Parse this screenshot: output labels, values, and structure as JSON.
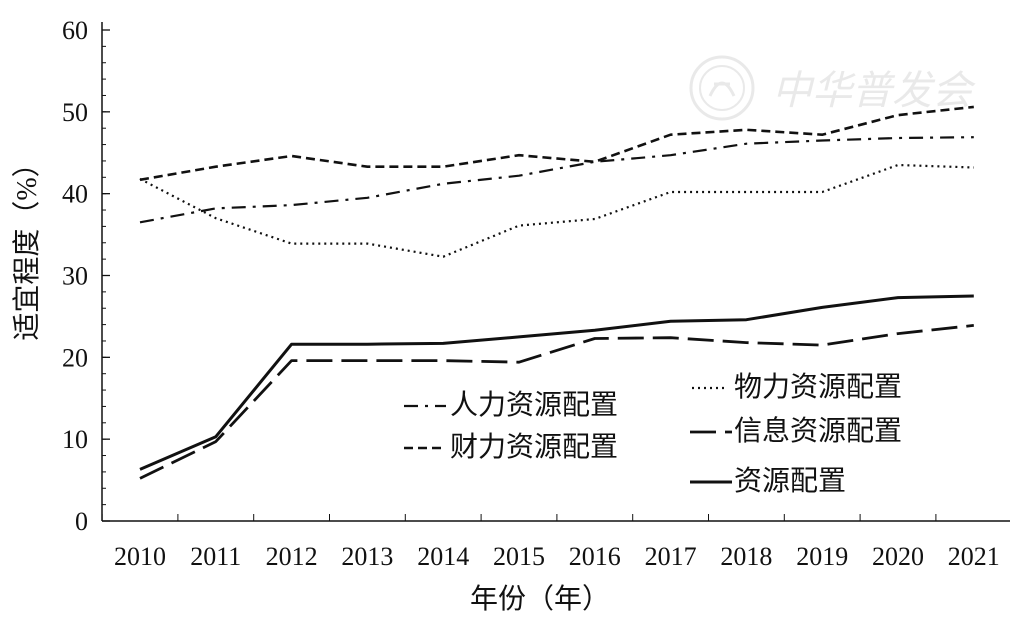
{
  "chart_data": {
    "type": "line",
    "xlabel": "年份（年）",
    "ylabel": "适宜程度（%）",
    "ylim": [
      0,
      60
    ],
    "y_ticks": [
      0,
      10,
      20,
      30,
      40,
      50,
      60
    ],
    "grid": false,
    "legend_placement": "bottom-center",
    "watermark_text": "中华普发会",
    "categories": [
      "2010",
      "2011",
      "2012",
      "2013",
      "2014",
      "2015",
      "2016",
      "2017",
      "2018",
      "2019",
      "2020",
      "2021"
    ],
    "series": [
      {
        "name": "人力资源配置",
        "style": "dash-dot",
        "values": [
          36.5,
          38.2,
          38.6,
          39.5,
          41.2,
          42.2,
          43.9,
          44.7,
          46.1,
          46.5,
          46.8,
          46.9
        ]
      },
      {
        "name": "物力资源配置",
        "style": "dotted",
        "values": [
          41.8,
          37.0,
          33.9,
          33.9,
          32.3,
          36.1,
          36.9,
          40.2,
          40.2,
          40.2,
          43.5,
          43.2
        ]
      },
      {
        "name": "财力资源配置",
        "style": "short-dash",
        "values": [
          41.7,
          43.3,
          44.6,
          43.3,
          43.3,
          44.7,
          43.9,
          47.2,
          47.8,
          47.2,
          49.6,
          50.6
        ]
      },
      {
        "name": "信息资源配置",
        "style": "long-dash",
        "values": [
          5.2,
          9.7,
          19.6,
          19.6,
          19.6,
          19.4,
          22.3,
          22.4,
          21.8,
          21.5,
          22.9,
          23.9
        ]
      },
      {
        "name": "资源配置",
        "style": "solid",
        "values": [
          6.3,
          10.3,
          21.6,
          21.6,
          21.7,
          22.5,
          23.3,
          24.4,
          24.6,
          26.1,
          27.3,
          27.5
        ]
      }
    ]
  }
}
